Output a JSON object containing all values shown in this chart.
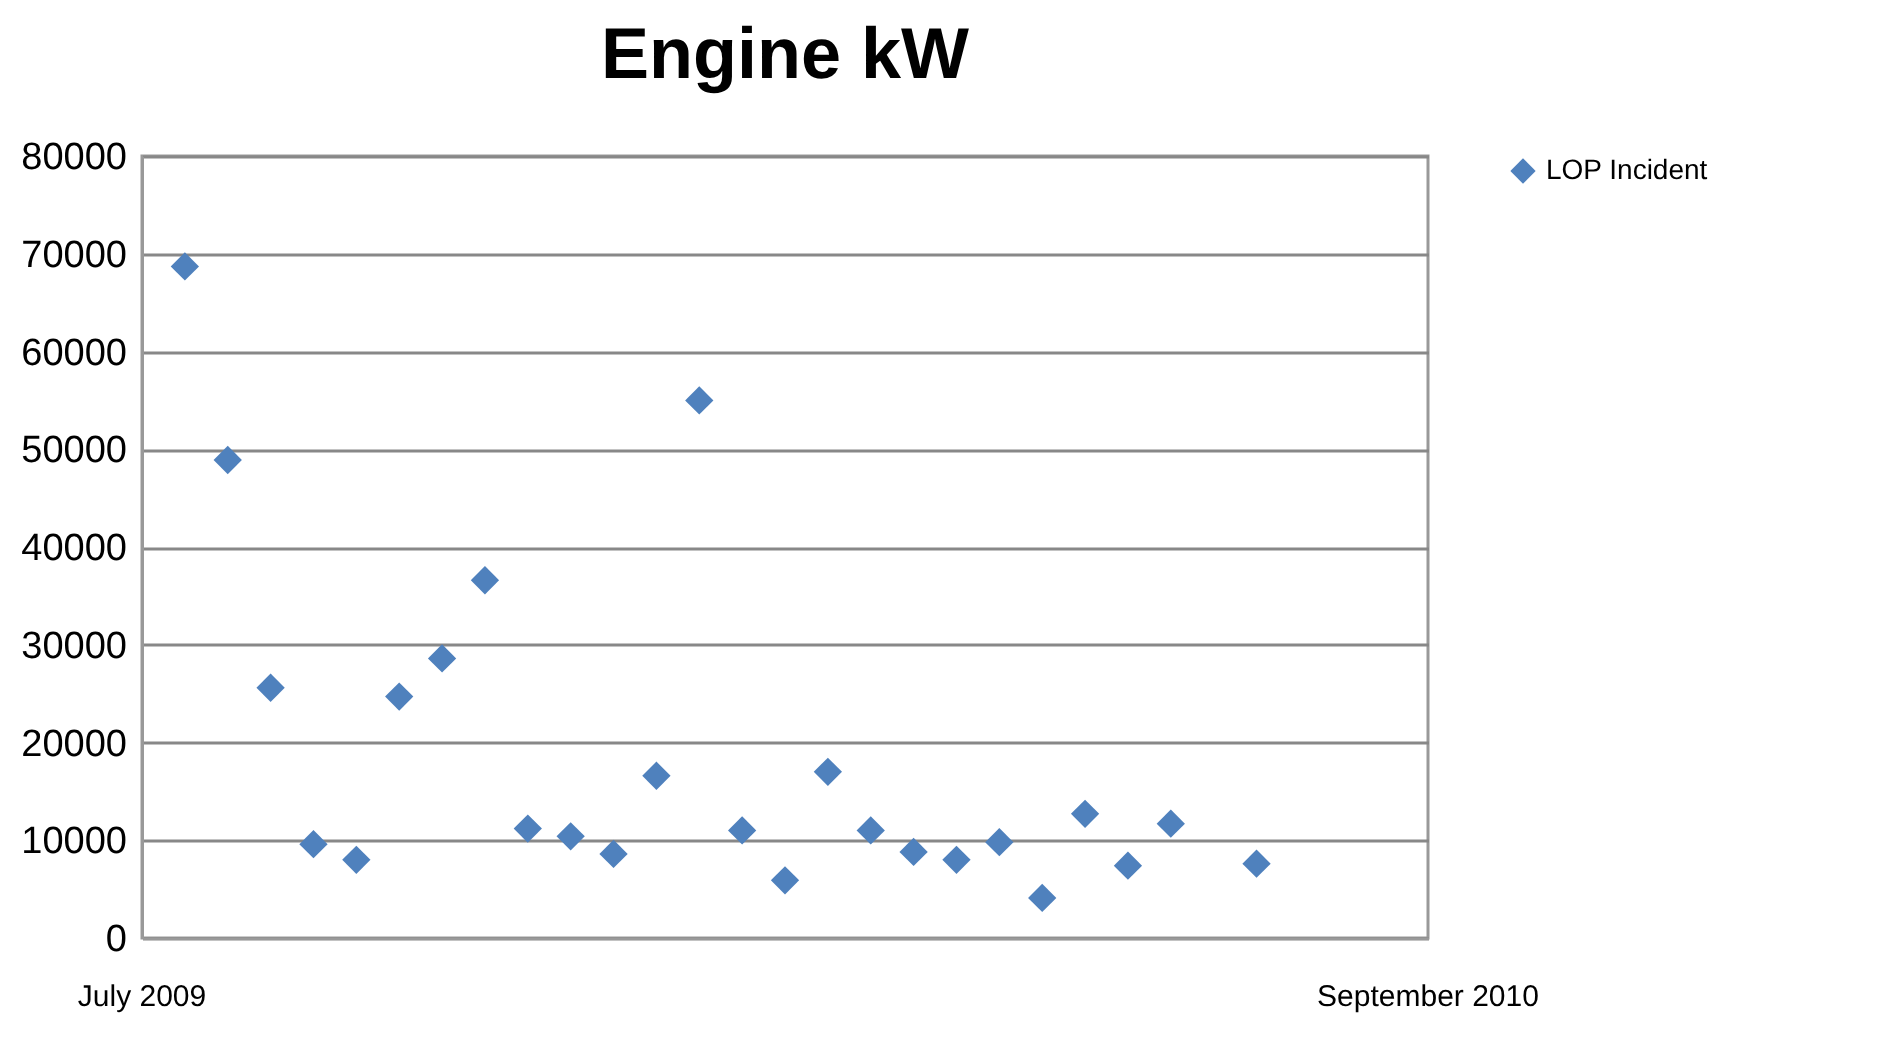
{
  "chart_data": {
    "type": "scatter",
    "title": "Engine kW",
    "categories": [
      null,
      null,
      null,
      null,
      null,
      null,
      null,
      null,
      null,
      null,
      null,
      null,
      null,
      null,
      null,
      null,
      null,
      null,
      null,
      null,
      null,
      null,
      null,
      null,
      null,
      null,
      null,
      null,
      null
    ],
    "series": [
      {
        "name": "LOP Incident",
        "color": "#4f81bd",
        "values": [
          68700,
          48900,
          25600,
          9600,
          8000,
          24700,
          28600,
          36600,
          11200,
          10400,
          8600,
          16600,
          55000,
          11000,
          5900,
          17000,
          11000,
          8800,
          8000,
          9800,
          4100,
          12700,
          7400,
          11700,
          null,
          7600,
          null,
          null,
          null
        ]
      }
    ],
    "ylim": [
      0,
      80000
    ],
    "yticks": [
      0,
      10000,
      20000,
      30000,
      40000,
      50000,
      60000,
      70000,
      80000
    ],
    "annotations": [
      "July 2009",
      "September 2010"
    ],
    "grid": "y",
    "legend": "right",
    "marker": "diamond"
  }
}
